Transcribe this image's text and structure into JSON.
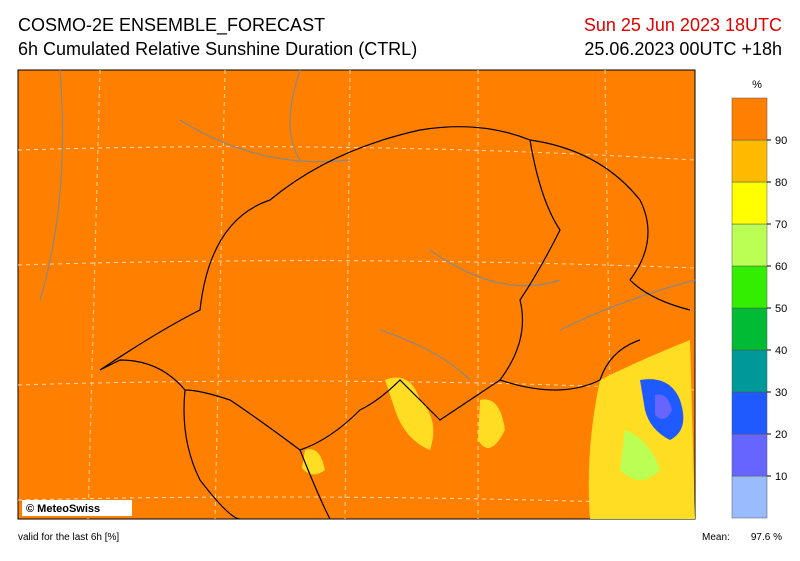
{
  "header": {
    "title": "COSMO-2E ENSEMBLE_FORECAST",
    "subtitle": "6h Cumulated Relative Sunshine Duration (CTRL)",
    "valid_time": "Sun 25 Jun 2023 18UTC",
    "run": "25.06.2023 00UTC +18h"
  },
  "map": {
    "copyright": "© MeteoSwiss"
  },
  "colorbar": {
    "unit": "%",
    "ticks": [
      10,
      20,
      30,
      40,
      50,
      60,
      70,
      80,
      90
    ],
    "colors": [
      "#99bbff",
      "#6666ff",
      "#1e5aff",
      "#009999",
      "#00bb33",
      "#33ee00",
      "#bbff55",
      "#ffff00",
      "#ffbb00",
      "#ff7f00"
    ]
  },
  "footer": {
    "note": "valid for the last 6h [%]",
    "mean_label": "Mean:",
    "mean_value": "97.6 %"
  }
}
